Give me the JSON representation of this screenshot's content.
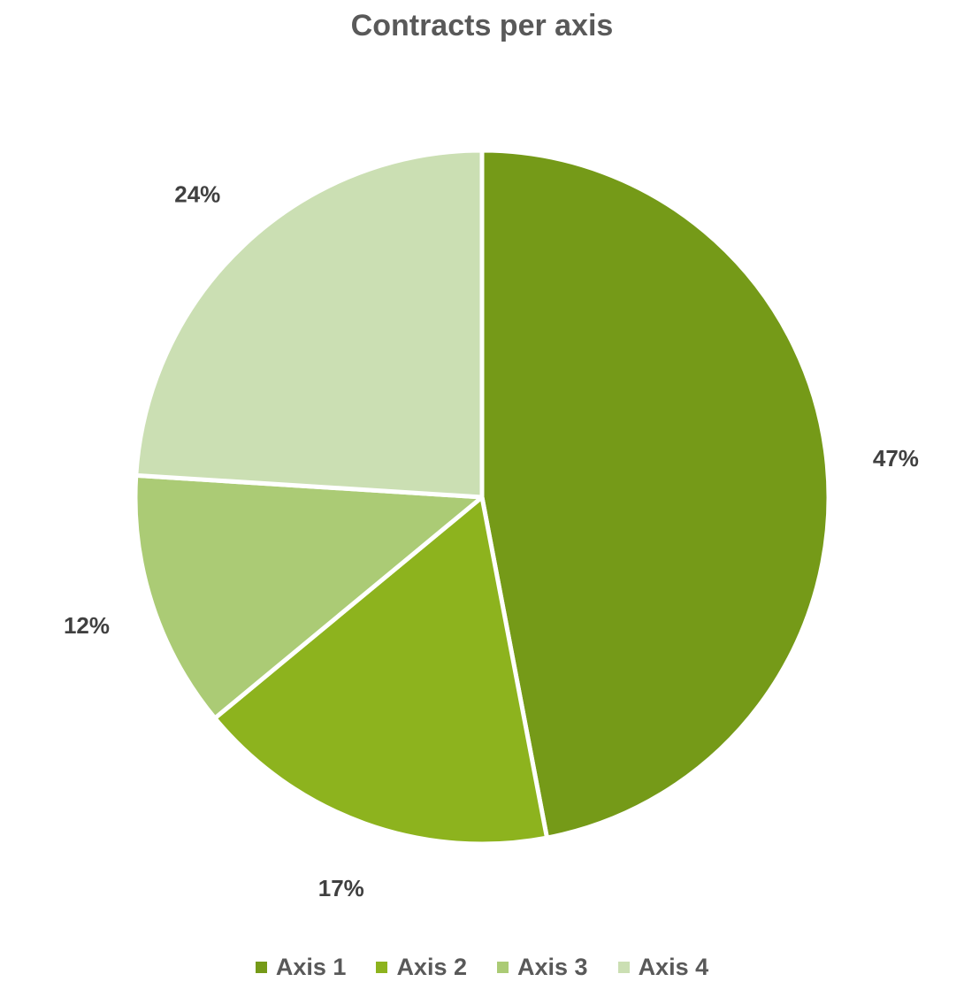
{
  "chart_data": {
    "type": "pie",
    "title": "Contracts per axis",
    "categories": [
      "Axis 1",
      "Axis 2",
      "Axis 3",
      "Axis 4"
    ],
    "values": [
      47,
      17,
      12,
      24
    ],
    "value_labels": [
      "47%",
      "17%",
      "12%",
      "24%"
    ],
    "colors": [
      "#759a18",
      "#8db31e",
      "#abcb75",
      "#cbdfb3"
    ],
    "start_angle_deg": 0,
    "direction": "clockwise",
    "legend_position": "bottom"
  }
}
